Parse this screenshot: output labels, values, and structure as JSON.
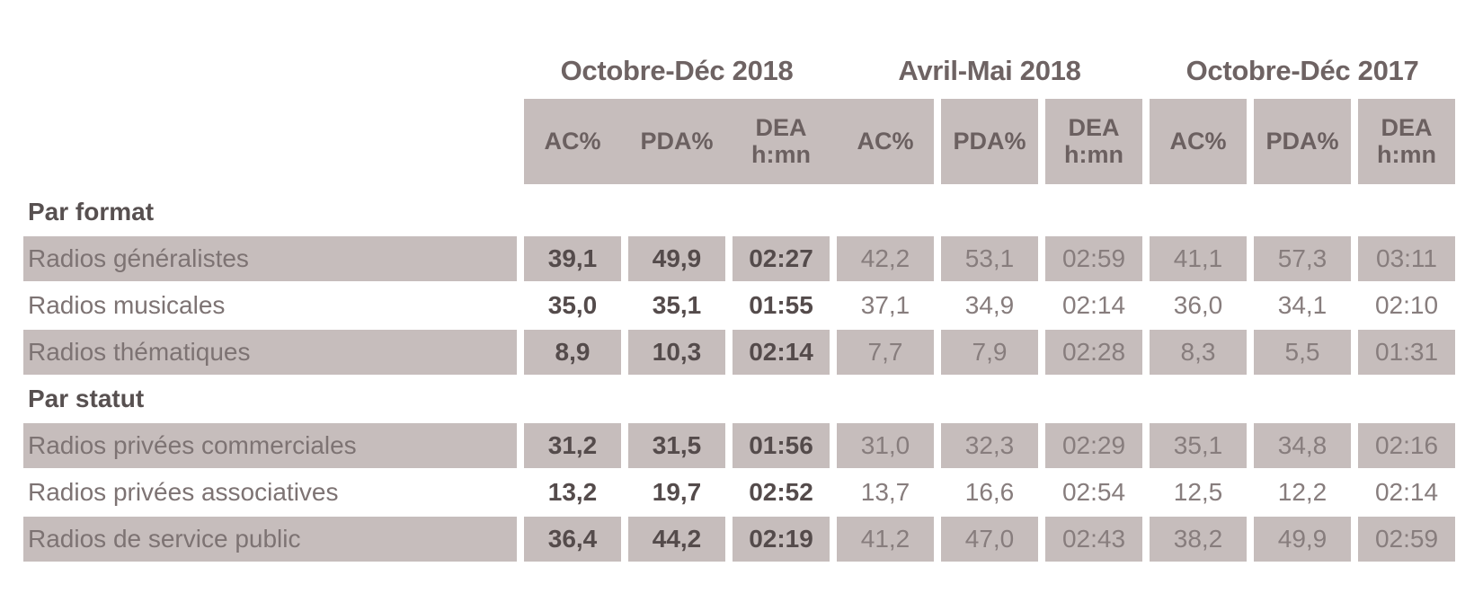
{
  "colors": {
    "stripe": "#c6bdbc",
    "period_title_text": "#6e6363",
    "header_text": "#6b6060",
    "bold_value_text": "#544b4b",
    "regular_value_text": "#877d7d",
    "row_label_text": "#7d7373",
    "section_title_text": "#575050",
    "background": "#ffffff"
  },
  "chart_data": {
    "type": "table",
    "period_groups": [
      "Octobre-Déc 2018",
      "Avril-Mai 2018",
      "Octobre-Déc 2017"
    ],
    "metric_columns": [
      "AC%",
      "PDA%",
      "DEA\nh:mn"
    ],
    "emphasized_group_index": 0,
    "sections": [
      {
        "title": "Par format",
        "rows": [
          {
            "label": "Radios généralistes",
            "values": [
              "39,1",
              "49,9",
              "02:27",
              "42,2",
              "53,1",
              "02:59",
              "41,1",
              "57,3",
              "03:11"
            ]
          },
          {
            "label": "Radios musicales",
            "values": [
              "35,0",
              "35,1",
              "01:55",
              "37,1",
              "34,9",
              "02:14",
              "36,0",
              "34,1",
              "02:10"
            ]
          },
          {
            "label": "Radios thématiques",
            "values": [
              "8,9",
              "10,3",
              "02:14",
              "7,7",
              "7,9",
              "02:28",
              "8,3",
              "5,5",
              "01:31"
            ]
          }
        ]
      },
      {
        "title": "Par statut",
        "rows": [
          {
            "label": "Radios privées commerciales",
            "values": [
              "31,2",
              "31,5",
              "01:56",
              "31,0",
              "32,3",
              "02:29",
              "35,1",
              "34,8",
              "02:16"
            ]
          },
          {
            "label": "Radios privées associatives",
            "values": [
              "13,2",
              "19,7",
              "02:52",
              "13,7",
              "16,6",
              "02:54",
              "12,5",
              "12,2",
              "02:14"
            ]
          },
          {
            "label": "Radios de service public",
            "values": [
              "36,4",
              "44,2",
              "02:19",
              "41,2",
              "47,0",
              "02:43",
              "38,2",
              "49,9",
              "02:59"
            ]
          }
        ]
      }
    ]
  }
}
